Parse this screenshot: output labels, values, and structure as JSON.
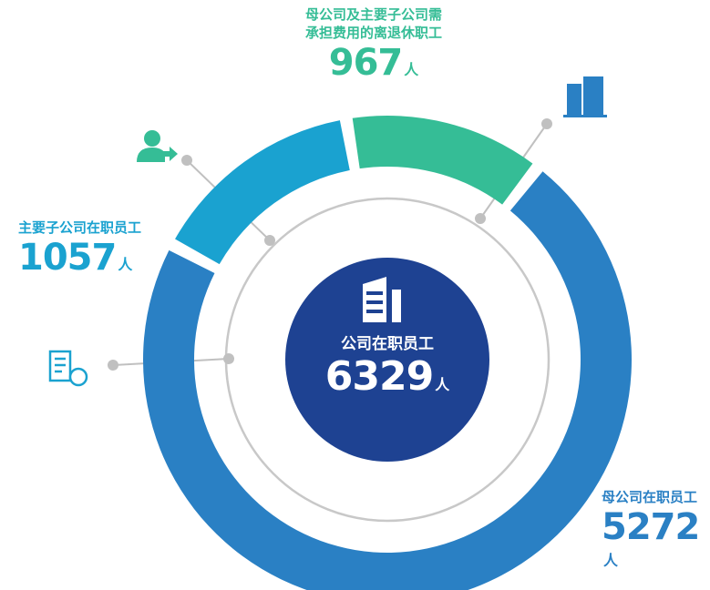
{
  "chart_data": {
    "type": "donut",
    "categories": [
      "母公司在职员工",
      "主要子公司在职员工",
      "母公司及主要子公司需承担费用的离退休职工"
    ],
    "values": [
      5272,
      1057,
      967
    ],
    "colors": [
      "#2a80c4",
      "#1aa2d0",
      "#35bd96"
    ],
    "unit": "人",
    "center": {
      "label": "公司在职员工",
      "value": 6329,
      "color": "#1e4292"
    }
  }
}
